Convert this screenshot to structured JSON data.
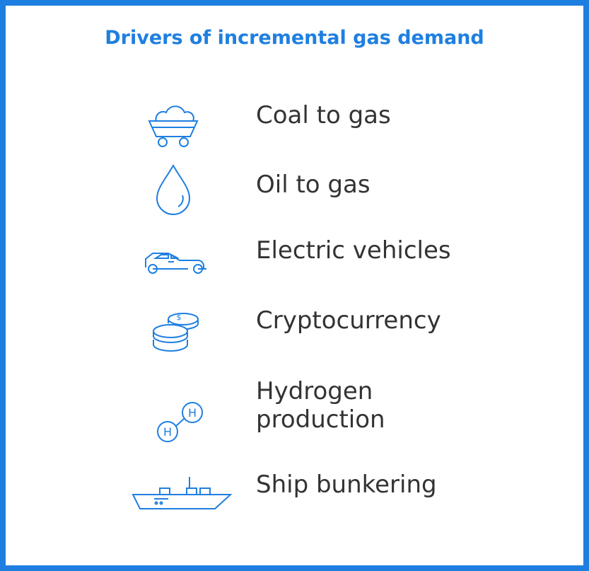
{
  "title": "Drivers of incremental gas demand",
  "items": [
    {
      "label": "Coal to gas"
    },
    {
      "label": "Oil to gas"
    },
    {
      "label": "Electric vehicles"
    },
    {
      "label": "Cryptocurrency"
    },
    {
      "label": "Hydrogen production"
    },
    {
      "label": "Ship bunkering"
    }
  ]
}
